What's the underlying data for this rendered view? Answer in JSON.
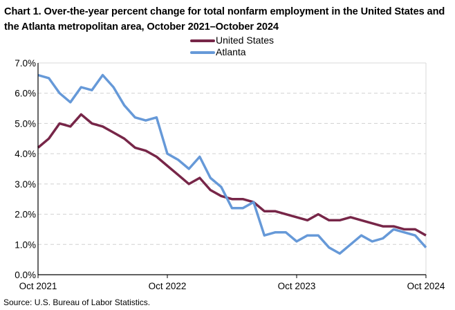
{
  "chart_data": {
    "type": "line",
    "title": "Chart 1. Over-the-year percent change for total nonfarm employment in the United States and the Atlanta metropolitan area, October 2021–October 2024",
    "xlabel": "",
    "ylabel": "",
    "x": [
      "Oct 2021",
      "Nov 2021",
      "Dec 2021",
      "Jan 2022",
      "Feb 2022",
      "Mar 2022",
      "Apr 2022",
      "May 2022",
      "Jun 2022",
      "Jul 2022",
      "Aug 2022",
      "Sep 2022",
      "Oct 2022",
      "Nov 2022",
      "Dec 2022",
      "Jan 2023",
      "Feb 2023",
      "Mar 2023",
      "Apr 2023",
      "May 2023",
      "Jun 2023",
      "Jul 2023",
      "Aug 2023",
      "Sep 2023",
      "Oct 2023",
      "Nov 2023",
      "Dec 2023",
      "Jan 2024",
      "Feb 2024",
      "Mar 2024",
      "Apr 2024",
      "May 2024",
      "Jun 2024",
      "Jul 2024",
      "Aug 2024",
      "Sep 2024",
      "Oct 2024"
    ],
    "x_ticks": [
      "Oct 2021",
      "Oct 2022",
      "Oct 2023",
      "Oct 2024"
    ],
    "y_ticks": [
      "0.0%",
      "1.0%",
      "2.0%",
      "3.0%",
      "4.0%",
      "5.0%",
      "6.0%",
      "7.0%"
    ],
    "ylim": [
      0,
      7
    ],
    "grid": "horizontal dashed",
    "legend_position": "top-center",
    "series": [
      {
        "name": "United States",
        "color": "#772648",
        "values": [
          4.2,
          4.5,
          5.0,
          4.9,
          5.3,
          5.0,
          4.9,
          4.7,
          4.5,
          4.2,
          4.1,
          3.9,
          3.6,
          3.3,
          3.0,
          3.2,
          2.8,
          2.6,
          2.5,
          2.5,
          2.4,
          2.1,
          2.1,
          2.0,
          1.9,
          1.8,
          2.0,
          1.8,
          1.8,
          1.9,
          1.8,
          1.7,
          1.6,
          1.6,
          1.5,
          1.5,
          1.3
        ]
      },
      {
        "name": "Atlanta",
        "color": "#6699D8",
        "values": [
          6.6,
          6.5,
          6.0,
          5.7,
          6.2,
          6.1,
          6.6,
          6.2,
          5.6,
          5.2,
          5.1,
          5.2,
          4.0,
          3.8,
          3.5,
          3.9,
          3.2,
          2.9,
          2.2,
          2.2,
          2.4,
          1.3,
          1.4,
          1.4,
          1.1,
          1.3,
          1.3,
          0.9,
          0.7,
          1.0,
          1.3,
          1.1,
          1.2,
          1.5,
          1.4,
          1.3,
          0.9
        ]
      }
    ],
    "source": "Source: U.S. Bureau of Labor Statistics."
  }
}
